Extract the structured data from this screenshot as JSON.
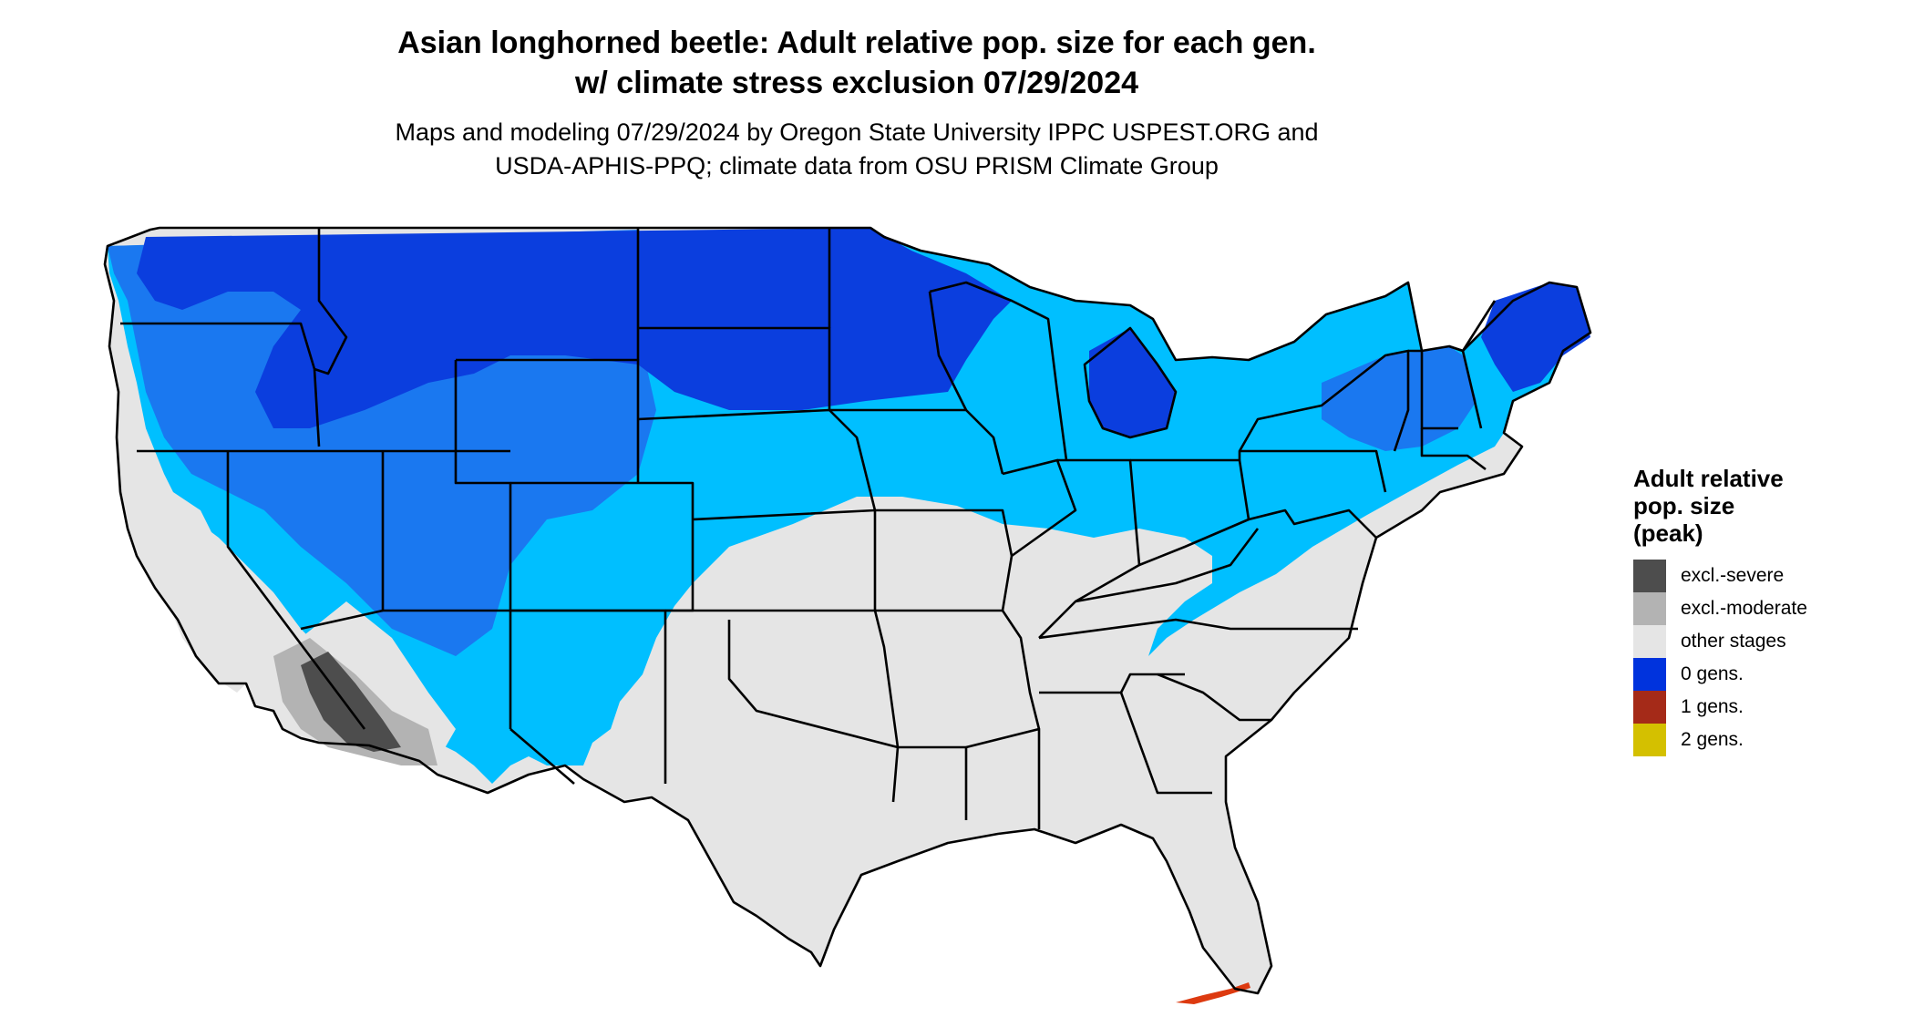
{
  "title": {
    "line1": "Asian longhorned beetle: Adult relative pop. size for each gen.",
    "line2": "w/ climate stress exclusion 07/29/2024"
  },
  "subtitle": {
    "line1": "Maps and modeling 07/29/2024 by Oregon State University IPPC USPEST.ORG and",
    "line2": "USDA-APHIS-PPQ; climate data from OSU PRISM Climate Group"
  },
  "legend": {
    "title": [
      "Adult relative",
      "pop. size",
      "(peak)"
    ],
    "items": [
      {
        "label": "excl.-severe",
        "color": "#4d4d4d"
      },
      {
        "label": "excl.-moderate",
        "color": "#b3b3b3"
      },
      {
        "label": "other stages",
        "color": "#e5e5e5"
      },
      {
        "label": "0 gens.",
        "color": "#0033dd"
      },
      {
        "label": "1 gens.",
        "color": "#a52a18"
      },
      {
        "label": "2 gens.",
        "color": "#d4c000"
      }
    ]
  },
  "map_colors": {
    "dark_blue": "#0b3ede",
    "mid_blue": "#1a78f0",
    "light_blue": "#00bfff",
    "gray": "#e5e5e5",
    "excl_severe": "#4d4d4d",
    "excl_moderate": "#b3b3b3",
    "red": "#dd3a10",
    "border": "#000000"
  }
}
